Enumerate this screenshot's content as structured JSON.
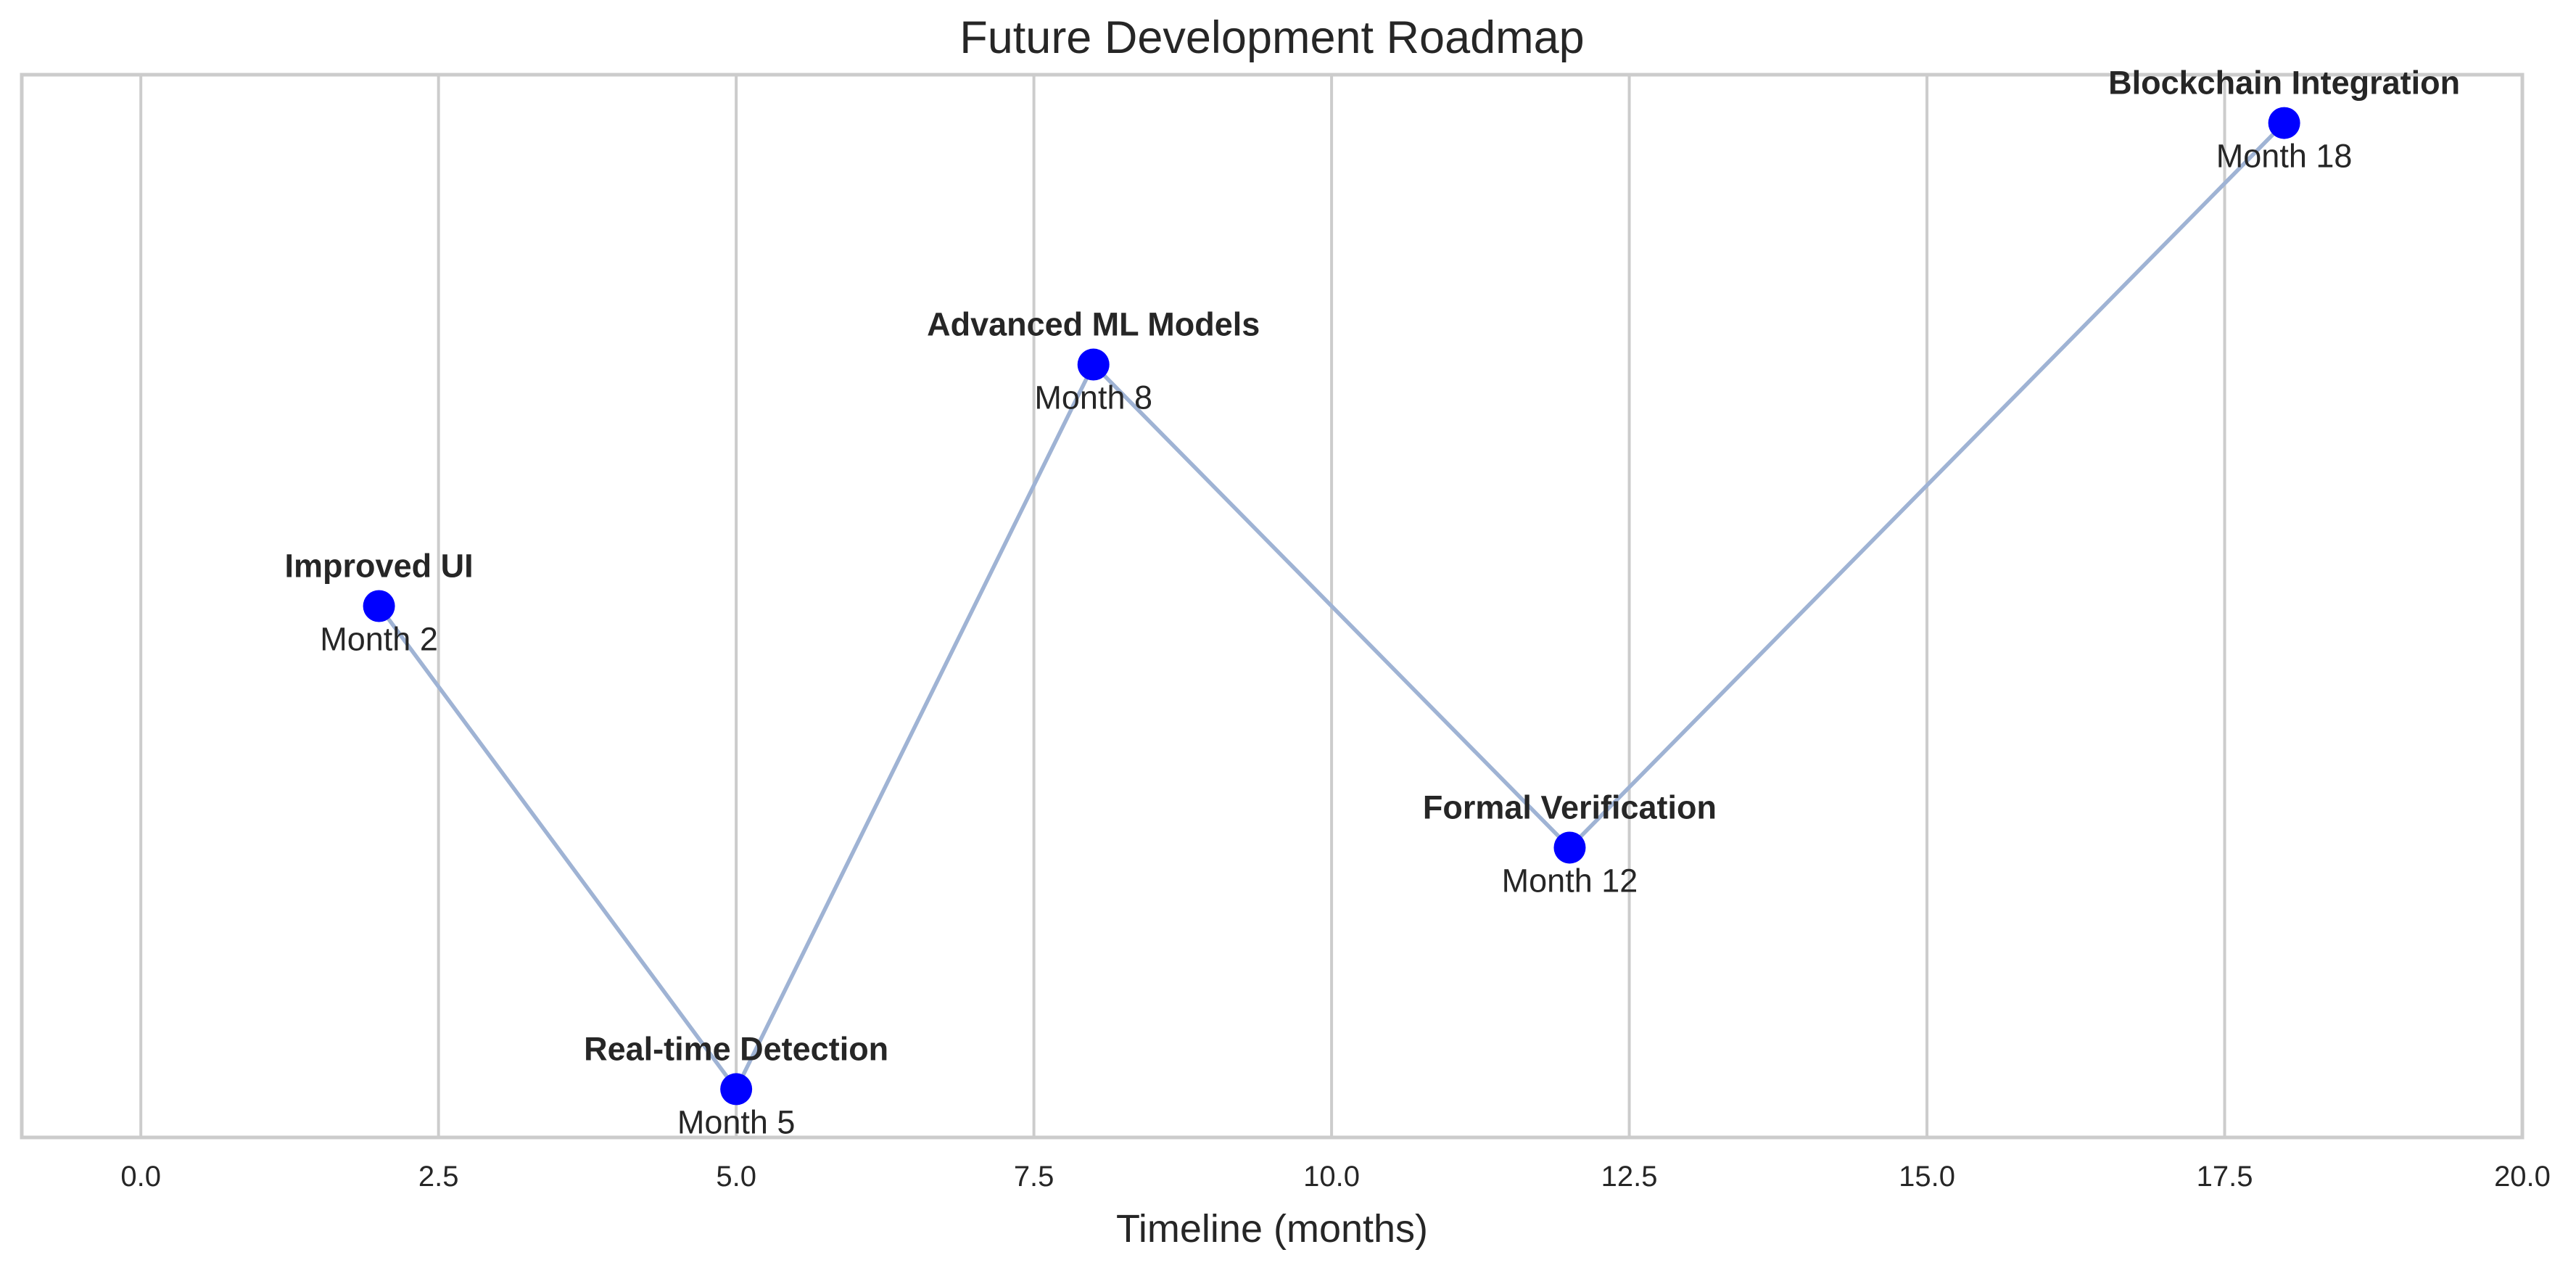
{
  "chart_data": {
    "type": "line",
    "title": "Future Development Roadmap",
    "xlabel": "Timeline (months)",
    "ylabel": "",
    "xlim": [
      -1,
      20
    ],
    "ylim": [
      -0.2,
      4.2
    ],
    "xticks": [
      0,
      2.5,
      5,
      7.5,
      10,
      12.5,
      15,
      17.5,
      20
    ],
    "xtick_labels": [
      "0.0",
      "2.5",
      "5.0",
      "7.5",
      "10.0",
      "12.5",
      "15.0",
      "17.5",
      "20.0"
    ],
    "grid": "x-only",
    "line_color": "#9fb3d4",
    "marker_color": "#0000ff",
    "milestones": [
      {
        "label": "Improved UI",
        "month_label": "Month 2",
        "x": 2,
        "y": 2
      },
      {
        "label": "Real-time Detection",
        "month_label": "Month 5",
        "x": 5,
        "y": 0
      },
      {
        "label": "Advanced ML Models",
        "month_label": "Month 8",
        "x": 8,
        "y": 3
      },
      {
        "label": "Formal Verification",
        "month_label": "Month 12",
        "x": 12,
        "y": 1
      },
      {
        "label": "Blockchain Integration",
        "month_label": "Month 18",
        "x": 18,
        "y": 4
      }
    ]
  }
}
